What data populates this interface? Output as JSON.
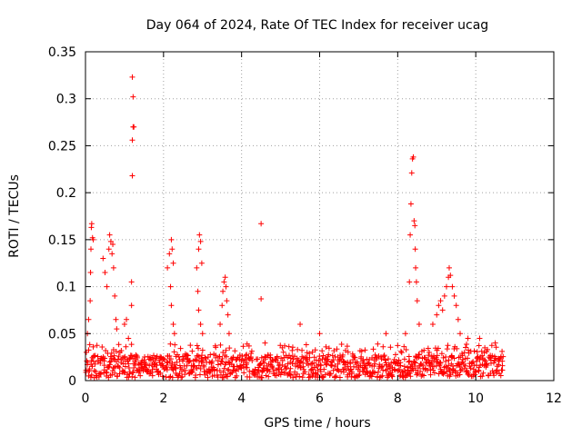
{
  "chart_data": {
    "type": "scatter",
    "title": "Day 064 of 2024, Rate Of TEC Index for receiver ucag",
    "xlabel": "GPS time / hours",
    "ylabel": "ROTI / TECUs",
    "xlim": [
      0,
      12
    ],
    "ylim": [
      0,
      0.35
    ],
    "x_ticks": [
      0,
      2,
      4,
      6,
      8,
      10,
      12
    ],
    "x_tick_labels": [
      "0",
      "2",
      "4",
      "6",
      "8",
      "10",
      "12"
    ],
    "y_ticks": [
      0,
      0.05,
      0.1,
      0.15,
      0.2,
      0.25,
      0.3,
      0.35
    ],
    "y_tick_labels": [
      "0",
      "0.05",
      "0.1",
      "0.15",
      "0.2",
      "0.25",
      "0.3",
      "0.35"
    ],
    "grid": true,
    "marker": "+",
    "series": [
      {
        "name": "ROTI",
        "color": "#ff0000",
        "baseline": {
          "x_start": 0.0,
          "x_end": 10.7,
          "step": 0.03,
          "typical_max": 0.03
        },
        "points": [
          [
            0.05,
            0.05
          ],
          [
            0.08,
            0.065
          ],
          [
            0.12,
            0.085
          ],
          [
            0.13,
            0.115
          ],
          [
            0.14,
            0.14
          ],
          [
            0.15,
            0.163
          ],
          [
            0.16,
            0.167
          ],
          [
            0.18,
            0.152
          ],
          [
            0.2,
            0.15
          ],
          [
            0.45,
            0.13
          ],
          [
            0.5,
            0.115
          ],
          [
            0.55,
            0.1
          ],
          [
            0.6,
            0.14
          ],
          [
            0.62,
            0.155
          ],
          [
            0.65,
            0.148
          ],
          [
            0.68,
            0.135
          ],
          [
            0.7,
            0.145
          ],
          [
            0.72,
            0.12
          ],
          [
            0.75,
            0.09
          ],
          [
            0.78,
            0.065
          ],
          [
            0.8,
            0.055
          ],
          [
            1.0,
            0.06
          ],
          [
            1.05,
            0.065
          ],
          [
            1.1,
            0.045
          ],
          [
            1.18,
            0.105
          ],
          [
            1.18,
            0.08
          ],
          [
            1.2,
            0.218
          ],
          [
            1.2,
            0.256
          ],
          [
            1.22,
            0.27
          ],
          [
            1.24,
            0.27
          ],
          [
            1.22,
            0.302
          ],
          [
            1.2,
            0.323
          ],
          [
            2.1,
            0.12
          ],
          [
            2.15,
            0.135
          ],
          [
            2.2,
            0.15
          ],
          [
            2.22,
            0.14
          ],
          [
            2.25,
            0.125
          ],
          [
            2.18,
            0.1
          ],
          [
            2.2,
            0.08
          ],
          [
            2.25,
            0.06
          ],
          [
            2.28,
            0.05
          ],
          [
            2.85,
            0.12
          ],
          [
            2.9,
            0.14
          ],
          [
            2.92,
            0.155
          ],
          [
            2.95,
            0.148
          ],
          [
            2.98,
            0.125
          ],
          [
            2.88,
            0.095
          ],
          [
            2.9,
            0.075
          ],
          [
            2.95,
            0.06
          ],
          [
            3.0,
            0.05
          ],
          [
            3.45,
            0.06
          ],
          [
            3.5,
            0.08
          ],
          [
            3.52,
            0.095
          ],
          [
            3.55,
            0.105
          ],
          [
            3.58,
            0.11
          ],
          [
            3.6,
            0.1
          ],
          [
            3.62,
            0.085
          ],
          [
            3.65,
            0.07
          ],
          [
            3.68,
            0.05
          ],
          [
            4.5,
            0.167
          ],
          [
            4.5,
            0.087
          ],
          [
            4.6,
            0.04
          ],
          [
            5.5,
            0.06
          ],
          [
            6.0,
            0.05
          ],
          [
            7.7,
            0.05
          ],
          [
            8.2,
            0.05
          ],
          [
            8.3,
            0.105
          ],
          [
            8.32,
            0.155
          ],
          [
            8.34,
            0.188
          ],
          [
            8.36,
            0.221
          ],
          [
            8.38,
            0.236
          ],
          [
            8.4,
            0.238
          ],
          [
            8.42,
            0.17
          ],
          [
            8.44,
            0.165
          ],
          [
            8.45,
            0.14
          ],
          [
            8.46,
            0.12
          ],
          [
            8.48,
            0.105
          ],
          [
            8.5,
            0.085
          ],
          [
            8.55,
            0.06
          ],
          [
            8.9,
            0.06
          ],
          [
            9.0,
            0.07
          ],
          [
            9.05,
            0.08
          ],
          [
            9.1,
            0.085
          ],
          [
            9.15,
            0.075
          ],
          [
            9.2,
            0.09
          ],
          [
            9.25,
            0.1
          ],
          [
            9.3,
            0.11
          ],
          [
            9.32,
            0.12
          ],
          [
            9.35,
            0.112
          ],
          [
            9.4,
            0.1
          ],
          [
            9.45,
            0.09
          ],
          [
            9.5,
            0.08
          ],
          [
            9.55,
            0.065
          ],
          [
            9.6,
            0.05
          ],
          [
            9.8,
            0.045
          ],
          [
            10.1,
            0.045
          ],
          [
            10.5,
            0.04
          ]
        ]
      }
    ]
  }
}
